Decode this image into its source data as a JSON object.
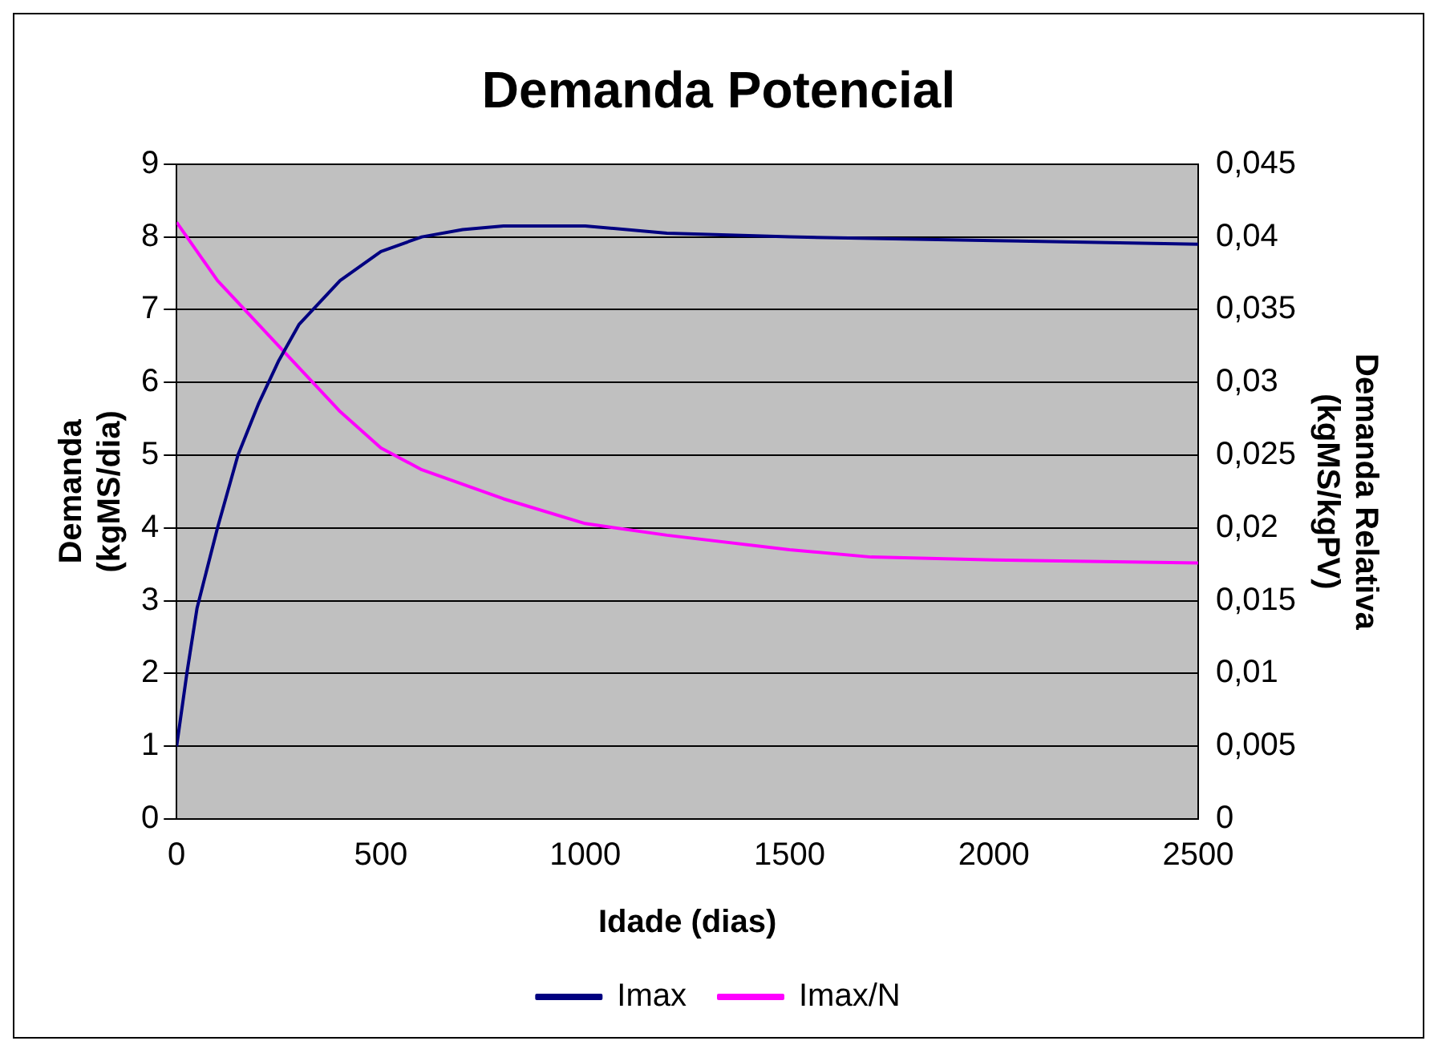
{
  "chart_data": {
    "type": "line",
    "title": "Demanda Potencial",
    "xlabel": "Idade (dias)",
    "ylabel": "Demanda (kgMS/dia)",
    "y2label": "Demanda Relativa (kgMS/kgPV)",
    "xlim": [
      0,
      2500
    ],
    "xticks": [
      0,
      500,
      1000,
      1500,
      2000,
      2500
    ],
    "ylim": [
      0,
      9
    ],
    "yticks": [
      0,
      1,
      2,
      3,
      4,
      5,
      6,
      7,
      8,
      9
    ],
    "y2lim": [
      0,
      0.045
    ],
    "y2ticks": [
      {
        "value": 0,
        "label": "0"
      },
      {
        "value": 0.005,
        "label": "0,005"
      },
      {
        "value": 0.01,
        "label": "0,01"
      },
      {
        "value": 0.015,
        "label": "0,015"
      },
      {
        "value": 0.02,
        "label": "0,02"
      },
      {
        "value": 0.025,
        "label": "0,025"
      },
      {
        "value": 0.03,
        "label": "0,03"
      },
      {
        "value": 0.035,
        "label": "0,035"
      },
      {
        "value": 0.04,
        "label": "0,04"
      },
      {
        "value": 0.045,
        "label": "0,045"
      }
    ],
    "grid": "y",
    "legend": "bottom",
    "marker": "none",
    "line_style": "solid",
    "series": [
      {
        "name": "Imax",
        "color": "#000080",
        "x": [
          0,
          25,
          50,
          100,
          150,
          200,
          250,
          300,
          400,
          500,
          600,
          700,
          800,
          1000,
          1200,
          1500,
          2000,
          2500
        ],
        "values": [
          1.0,
          2.0,
          2.9,
          4.0,
          5.0,
          5.7,
          6.3,
          6.8,
          7.4,
          7.8,
          8.0,
          8.1,
          8.15,
          8.15,
          8.05,
          8.0,
          7.95,
          7.9
        ]
      },
      {
        "name": "Imax/N",
        "color": "#ff00ff",
        "axis": "y2",
        "x": [
          0,
          100,
          200,
          300,
          400,
          500,
          600,
          800,
          1000,
          1200,
          1500,
          1700,
          2000,
          2500
        ],
        "values": [
          0.041,
          0.037,
          0.034,
          0.031,
          0.028,
          0.0255,
          0.024,
          0.022,
          0.0203,
          0.0195,
          0.0185,
          0.018,
          0.0178,
          0.0176
        ]
      }
    ]
  }
}
